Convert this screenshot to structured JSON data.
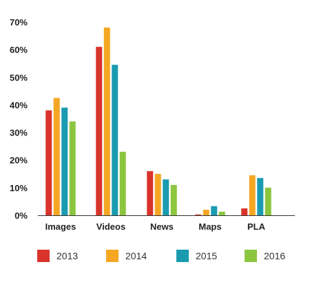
{
  "chart_data": {
    "type": "bar",
    "categories": [
      "Images",
      "Videos",
      "News",
      "Maps",
      "PLA"
    ],
    "series": [
      {
        "name": "2013",
        "color": "#d9342b",
        "values": [
          38,
          61,
          16,
          0.3,
          2.5
        ]
      },
      {
        "name": "2014",
        "color": "#f5a623",
        "values": [
          42.5,
          68,
          15,
          2,
          14.5
        ]
      },
      {
        "name": "2015",
        "color": "#1a9bb0",
        "values": [
          39,
          54.5,
          13,
          3.3,
          13.5
        ]
      },
      {
        "name": "2016",
        "color": "#8cc63f",
        "values": [
          34,
          23,
          11,
          1.3,
          10
        ]
      }
    ],
    "yticks": [
      "0%",
      "10%",
      "20%",
      "30%",
      "40%",
      "50%",
      "60%",
      "70%"
    ],
    "ylim": [
      0,
      70
    ],
    "title": "",
    "xlabel": "",
    "ylabel": "",
    "grid": false,
    "legend_position": "bottom"
  }
}
